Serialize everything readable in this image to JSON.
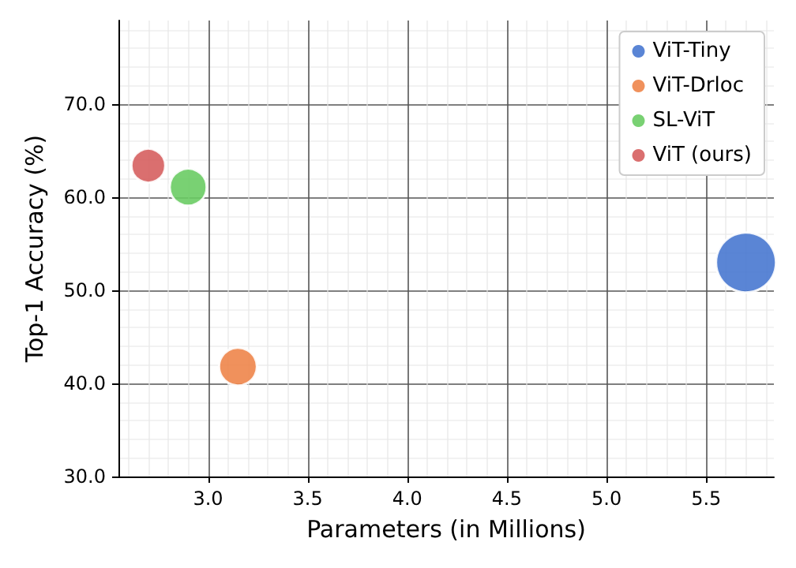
{
  "chart_data": {
    "type": "bubble",
    "xlabel": "Parameters (in Millions)",
    "ylabel": "Top-1 Accuracy (%)",
    "xlim": [
      2.55,
      5.84
    ],
    "ylim": [
      30,
      79
    ],
    "xticks": [
      {
        "value": 3,
        "label": "3.0"
      },
      {
        "value": 3.5,
        "label": "3.5"
      },
      {
        "value": 4,
        "label": "4.0"
      },
      {
        "value": 4.5,
        "label": "4.5"
      },
      {
        "value": 5,
        "label": "5.0"
      },
      {
        "value": 5.5,
        "label": "5.5"
      }
    ],
    "yticks": [
      {
        "value": 30,
        "label": "30.0"
      },
      {
        "value": 40,
        "label": "40.0"
      },
      {
        "value": 50,
        "label": "50.0"
      },
      {
        "value": 60,
        "label": "60.0"
      },
      {
        "value": 70,
        "label": "70.0"
      }
    ],
    "grid": true,
    "legend": "top right",
    "marker": "circle",
    "series": [
      {
        "name": "ViT-Tiny",
        "color": "#4878d0",
        "x": [
          5.7
        ],
        "values": [
          53.0
        ],
        "sizes": [
          1
        ]
      },
      {
        "name": "ViT-Drloc",
        "color": "#ee854a",
        "x": [
          3.15
        ],
        "values": [
          41.8
        ],
        "sizes": [
          0.4
        ]
      },
      {
        "name": "SL-ViT",
        "color": "#6acc64",
        "x": [
          2.9
        ],
        "values": [
          61.1
        ],
        "sizes": [
          0.38
        ]
      },
      {
        "name": "ViT (ours)",
        "color": "#d65f5f",
        "x": [
          2.7
        ],
        "values": [
          63.4
        ],
        "sizes": [
          0.32
        ]
      }
    ]
  }
}
